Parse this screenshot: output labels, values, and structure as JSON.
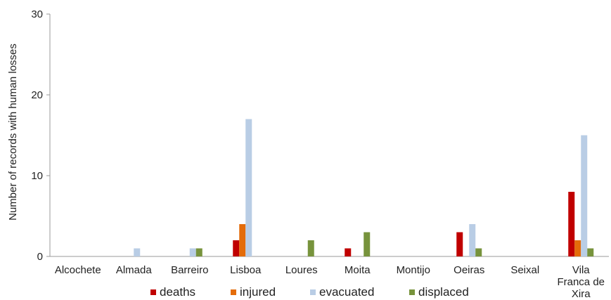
{
  "chart_data": {
    "type": "bar",
    "title": "",
    "xlabel": "",
    "ylabel": "Number of records  with human losses",
    "ylim": [
      0,
      30
    ],
    "yticks": [
      0,
      10,
      20,
      30
    ],
    "grid": false,
    "legend_position": "bottom",
    "categories": [
      [
        "Alcochete"
      ],
      [
        "Almada"
      ],
      [
        "Barreiro"
      ],
      [
        "Lisboa"
      ],
      [
        "Loures"
      ],
      [
        "Moita"
      ],
      [
        "Montijo"
      ],
      [
        "Oeiras"
      ],
      [
        "Seixal"
      ],
      [
        "Vila",
        "Franca de",
        "Xira"
      ]
    ],
    "series": [
      {
        "name": "deaths",
        "color": "#c00000",
        "values": [
          0,
          0,
          0,
          2,
          0,
          1,
          0,
          3,
          0,
          8
        ]
      },
      {
        "name": "injured",
        "color": "#e46c0a",
        "values": [
          0,
          0,
          0,
          4,
          0,
          0,
          0,
          0,
          0,
          2
        ]
      },
      {
        "name": "evacuated",
        "color": "#b9cde5",
        "values": [
          0,
          1,
          1,
          17,
          0,
          0,
          0,
          4,
          0,
          15
        ]
      },
      {
        "name": "displaced",
        "color": "#77933c",
        "values": [
          0,
          0,
          1,
          0,
          2,
          3,
          0,
          1,
          0,
          1
        ]
      }
    ]
  }
}
